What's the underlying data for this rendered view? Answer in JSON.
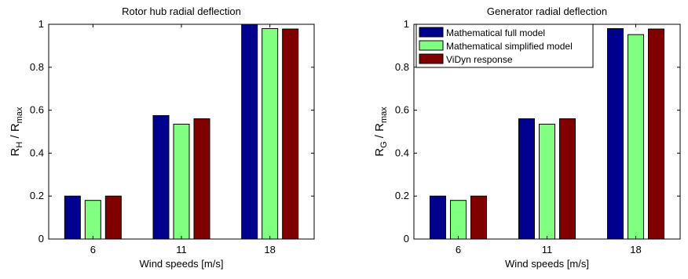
{
  "colors": {
    "series": [
      "#00008f",
      "#80ff80",
      "#800000"
    ],
    "axis": "#000000",
    "background": "#ffffff"
  },
  "chart_data": [
    {
      "type": "bar",
      "title": "Rotor hub radial deflection",
      "xlabel": "Wind speeds [m/s]",
      "ylabel": {
        "main": "R",
        "sub1": "H",
        "mid": " / R",
        "sub2": "max"
      },
      "categories": [
        "6",
        "11",
        "18"
      ],
      "ylim": [
        0,
        1
      ],
      "yticks": [
        "0",
        "0.2",
        "0.4",
        "0.6",
        "0.8",
        "1"
      ],
      "grid": false,
      "legend": null,
      "series": [
        {
          "values": [
            0.2,
            0.575,
            1.0
          ]
        },
        {
          "values": [
            0.18,
            0.535,
            0.98
          ]
        },
        {
          "values": [
            0.2,
            0.56,
            0.978
          ]
        }
      ]
    },
    {
      "type": "bar",
      "title": "Generator radial deflection",
      "xlabel": "Wind speeds [m/s]",
      "ylabel": {
        "main": "R",
        "sub1": "G",
        "mid": " / R",
        "sub2": "max"
      },
      "categories": [
        "6",
        "11",
        "18"
      ],
      "ylim": [
        0,
        1
      ],
      "yticks": [
        "0",
        "0.2",
        "0.4",
        "0.6",
        "0.8",
        "1"
      ],
      "grid": false,
      "legend": "top-left",
      "series": [
        {
          "name": "Mathematical full model",
          "values": [
            0.2,
            0.56,
            0.98
          ]
        },
        {
          "name": "Mathematical simplified model",
          "values": [
            0.18,
            0.535,
            0.952
          ]
        },
        {
          "name": "ViDyn response",
          "values": [
            0.2,
            0.56,
            0.978
          ]
        }
      ]
    }
  ]
}
